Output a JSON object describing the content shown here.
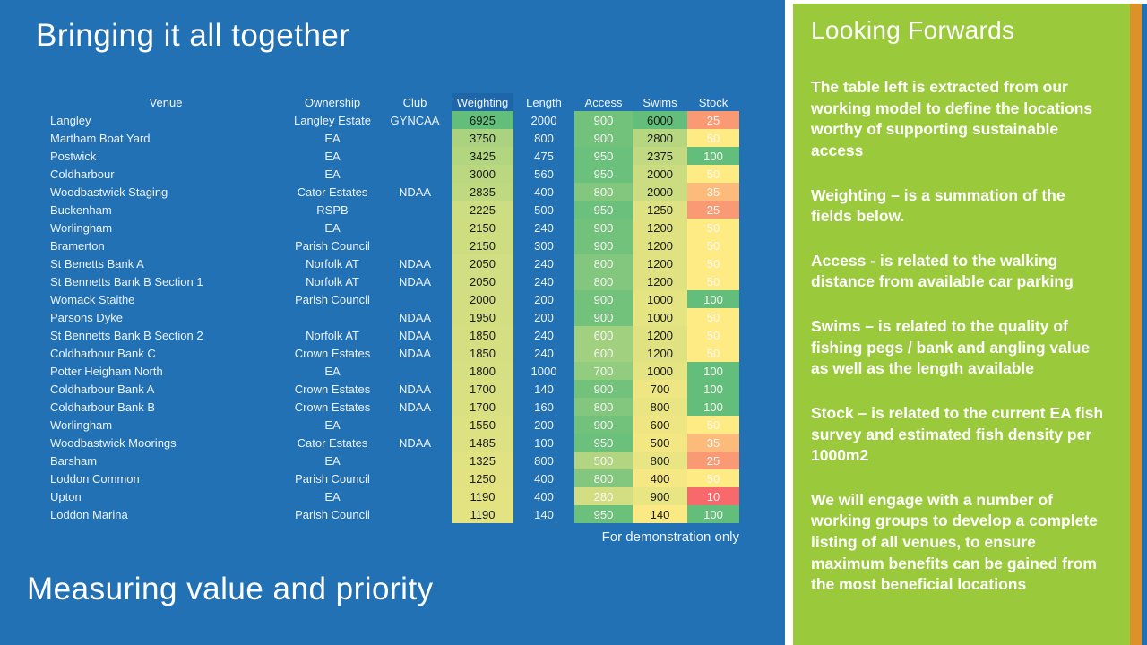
{
  "slide": {
    "title": "Bringing it all together",
    "footer_title": "Measuring value and priority",
    "demo_note": "For demonstration only"
  },
  "table": {
    "headers": [
      "Venue",
      "Ownership",
      "Club",
      "Weighting",
      "Length",
      "Access",
      "Swims",
      "Stock"
    ],
    "rows": [
      {
        "venue": "Langley",
        "ownership": "Langley Estate",
        "club": "GYNCAA",
        "weighting": {
          "v": "6925",
          "bg": "#63BE7B"
        },
        "length": "2000",
        "access": {
          "v": "900",
          "bg": "#73C27C"
        },
        "swims": {
          "v": "6000",
          "bg": "#63BE7B"
        },
        "stock": {
          "v": "25",
          "bg": "#FA9A74"
        }
      },
      {
        "venue": "Martham Boat Yard",
        "ownership": "EA",
        "club": "",
        "weighting": {
          "v": "3750",
          "bg": "#ABD37F"
        },
        "length": "800",
        "access": {
          "v": "900",
          "bg": "#73C27C"
        },
        "swims": {
          "v": "2800",
          "bg": "#B6D680"
        },
        "stock": {
          "v": "50",
          "bg": "#FFEB84"
        }
      },
      {
        "venue": "Postwick",
        "ownership": "EA",
        "club": "",
        "weighting": {
          "v": "3425",
          "bg": "#B2D580"
        },
        "length": "475",
        "access": {
          "v": "950",
          "bg": "#6BC07C"
        },
        "swims": {
          "v": "2375",
          "bg": "#C1D980"
        },
        "stock": {
          "v": "100",
          "bg": "#63BE7B"
        }
      },
      {
        "venue": "Coldharbour",
        "ownership": "EA",
        "club": "",
        "weighting": {
          "v": "3000",
          "bg": "#BBD780"
        },
        "length": "560",
        "access": {
          "v": "950",
          "bg": "#6BC07C"
        },
        "swims": {
          "v": "2000",
          "bg": "#CBDC81"
        },
        "stock": {
          "v": "50",
          "bg": "#FFEB84"
        }
      },
      {
        "venue": "Woodbastwick Staging",
        "ownership": "Cator Estates",
        "club": "NDAA",
        "weighting": {
          "v": "2835",
          "bg": "#BFD980"
        },
        "length": "400",
        "access": {
          "v": "800",
          "bg": "#82C77D"
        },
        "swims": {
          "v": "2000",
          "bg": "#CBDC81"
        },
        "stock": {
          "v": "35",
          "bg": "#FCBA7B"
        }
      },
      {
        "venue": "Buckenham",
        "ownership": "RSPB",
        "club": "",
        "weighting": {
          "v": "2225",
          "bg": "#CDDD81"
        },
        "length": "500",
        "access": {
          "v": "950",
          "bg": "#6BC07C"
        },
        "swims": {
          "v": "1250",
          "bg": "#DFE282"
        },
        "stock": {
          "v": "25",
          "bg": "#FA9A74"
        }
      },
      {
        "venue": "Worlingham",
        "ownership": "EA",
        "club": "",
        "weighting": {
          "v": "2150",
          "bg": "#CFDD81"
        },
        "length": "240",
        "access": {
          "v": "900",
          "bg": "#73C27C"
        },
        "swims": {
          "v": "1200",
          "bg": "#E0E282"
        },
        "stock": {
          "v": "50",
          "bg": "#FFEB84"
        }
      },
      {
        "venue": "Bramerton",
        "ownership": "Parish Council",
        "club": "",
        "weighting": {
          "v": "2150",
          "bg": "#CFDD81"
        },
        "length": "300",
        "access": {
          "v": "900",
          "bg": "#73C27C"
        },
        "swims": {
          "v": "1200",
          "bg": "#E0E282"
        },
        "stock": {
          "v": "50",
          "bg": "#FFEB84"
        }
      },
      {
        "venue": "St Benetts Bank A",
        "ownership": "Norfolk AT",
        "club": "NDAA",
        "weighting": {
          "v": "2050",
          "bg": "#D1DE81"
        },
        "length": "240",
        "access": {
          "v": "800",
          "bg": "#82C77D"
        },
        "swims": {
          "v": "1200",
          "bg": "#E0E282"
        },
        "stock": {
          "v": "50",
          "bg": "#FFEB84"
        }
      },
      {
        "venue": "St Bennetts Bank B Section 1",
        "ownership": "Norfolk AT",
        "club": "NDAA",
        "weighting": {
          "v": "2050",
          "bg": "#D1DE81"
        },
        "length": "240",
        "access": {
          "v": "800",
          "bg": "#82C77D"
        },
        "swims": {
          "v": "1200",
          "bg": "#E0E282"
        },
        "stock": {
          "v": "50",
          "bg": "#FFEB84"
        }
      },
      {
        "venue": "Womack Staithe",
        "ownership": "Parish Council",
        "club": "",
        "weighting": {
          "v": "2000",
          "bg": "#D2DE81"
        },
        "length": "200",
        "access": {
          "v": "900",
          "bg": "#73C27C"
        },
        "swims": {
          "v": "1000",
          "bg": "#E5E483"
        },
        "stock": {
          "v": "100",
          "bg": "#63BE7B"
        }
      },
      {
        "venue": "Parsons Dyke",
        "ownership": "",
        "club": "NDAA",
        "weighting": {
          "v": "1950",
          "bg": "#D3DE81"
        },
        "length": "200",
        "access": {
          "v": "900",
          "bg": "#73C27C"
        },
        "swims": {
          "v": "1000",
          "bg": "#E5E483"
        },
        "stock": {
          "v": "50",
          "bg": "#FFEB84"
        }
      },
      {
        "venue": "St Bennetts Bank B Section 2",
        "ownership": "Norfolk AT",
        "club": "NDAA",
        "weighting": {
          "v": "1850",
          "bg": "#D5DF81"
        },
        "length": "240",
        "access": {
          "v": "600",
          "bg": "#A1D07F"
        },
        "swims": {
          "v": "1200",
          "bg": "#E0E282"
        },
        "stock": {
          "v": "50",
          "bg": "#FFEB84"
        }
      },
      {
        "venue": "Coldharbour Bank C",
        "ownership": "Crown Estates",
        "club": "NDAA",
        "weighting": {
          "v": "1850",
          "bg": "#D5DF81"
        },
        "length": "240",
        "access": {
          "v": "600",
          "bg": "#A1D07F"
        },
        "swims": {
          "v": "1200",
          "bg": "#E0E282"
        },
        "stock": {
          "v": "50",
          "bg": "#FFEB84"
        }
      },
      {
        "venue": "Potter Heigham North",
        "ownership": "EA",
        "club": "",
        "weighting": {
          "v": "1800",
          "bg": "#D6DF81"
        },
        "length": "1000",
        "access": {
          "v": "700",
          "bg": "#92CC7E"
        },
        "swims": {
          "v": "1000",
          "bg": "#E5E483"
        },
        "stock": {
          "v": "100",
          "bg": "#63BE7B"
        }
      },
      {
        "venue": "Coldharbour Bank A",
        "ownership": "Crown Estates",
        "club": "NDAA",
        "weighting": {
          "v": "1700",
          "bg": "#D9E082"
        },
        "length": "140",
        "access": {
          "v": "900",
          "bg": "#73C27C"
        },
        "swims": {
          "v": "700",
          "bg": "#EDE683"
        },
        "stock": {
          "v": "100",
          "bg": "#63BE7B"
        }
      },
      {
        "venue": "Coldharbour Bank B",
        "ownership": "Crown Estates",
        "club": "NDAA",
        "weighting": {
          "v": "1700",
          "bg": "#D9E082"
        },
        "length": "160",
        "access": {
          "v": "800",
          "bg": "#82C77D"
        },
        "swims": {
          "v": "800",
          "bg": "#EAE583"
        },
        "stock": {
          "v": "100",
          "bg": "#63BE7B"
        }
      },
      {
        "venue": "Worlingham",
        "ownership": "EA",
        "club": "",
        "weighting": {
          "v": "1550",
          "bg": "#DCE181"
        },
        "length": "200",
        "access": {
          "v": "900",
          "bg": "#73C27C"
        },
        "swims": {
          "v": "600",
          "bg": "#EFE683"
        },
        "stock": {
          "v": "50",
          "bg": "#FFEB84"
        }
      },
      {
        "venue": "Woodbastwick Moorings",
        "ownership": "Cator Estates",
        "club": "NDAA",
        "weighting": {
          "v": "1485",
          "bg": "#DEE182"
        },
        "length": "100",
        "access": {
          "v": "950",
          "bg": "#6BC07C"
        },
        "swims": {
          "v": "500",
          "bg": "#F2E783"
        },
        "stock": {
          "v": "35",
          "bg": "#FCBA7B"
        }
      },
      {
        "venue": "Barsham",
        "ownership": "EA",
        "club": "",
        "weighting": {
          "v": "1325",
          "bg": "#E1E282"
        },
        "length": "800",
        "access": {
          "v": "500",
          "bg": "#B1D580"
        },
        "swims": {
          "v": "800",
          "bg": "#EAE583"
        },
        "stock": {
          "v": "25",
          "bg": "#FA9A74"
        }
      },
      {
        "venue": "Loddon Common",
        "ownership": "Parish Council",
        "club": "",
        "weighting": {
          "v": "1250",
          "bg": "#E3E282"
        },
        "length": "400",
        "access": {
          "v": "800",
          "bg": "#82C77D"
        },
        "swims": {
          "v": "400",
          "bg": "#F5E783"
        },
        "stock": {
          "v": "50",
          "bg": "#FFEB84"
        }
      },
      {
        "venue": "Upton",
        "ownership": "EA",
        "club": "",
        "weighting": {
          "v": "1190",
          "bg": "#E4E382"
        },
        "length": "400",
        "access": {
          "v": "280",
          "bg": "#D3DE82"
        },
        "swims": {
          "v": "900",
          "bg": "#E8E583"
        },
        "stock": {
          "v": "10",
          "bg": "#F8696B"
        }
      },
      {
        "venue": "Loddon Marina",
        "ownership": "Parish Council",
        "club": "",
        "weighting": {
          "v": "1190",
          "bg": "#E4E382"
        },
        "length": "140",
        "access": {
          "v": "950",
          "bg": "#6BC07C"
        },
        "swims": {
          "v": "140",
          "bg": "#FBEA84"
        },
        "stock": {
          "v": "100",
          "bg": "#63BE7B"
        }
      }
    ]
  },
  "panel": {
    "heading": "Looking Forwards",
    "paragraphs": [
      "The table left is extracted from our working model to define the locations worthy of supporting sustainable access",
      "Weighting – is a summation of the fields below.",
      "Access - is related to the walking distance from available car parking",
      "Swims – is related to the quality of fishing pegs / bank and angling value as well as the length available",
      "Stock – is related to the current EA fish survey and estimated fish density per 1000m2",
      "We will engage with a number of working groups to develop a complete listing of all venues, to ensure maximum benefits can be gained from the most beneficial locations"
    ]
  },
  "colors": {
    "slide_bg": "#2271B5",
    "panel_bg": "#9ACA3B",
    "accent_orange": "#DD9229",
    "accent_blue": "#2271B5",
    "weighting_header_bg": "#1E66A8",
    "scale_green": "#63BE7B",
    "scale_yellow": "#FFEB84",
    "scale_red": "#F8696B"
  }
}
